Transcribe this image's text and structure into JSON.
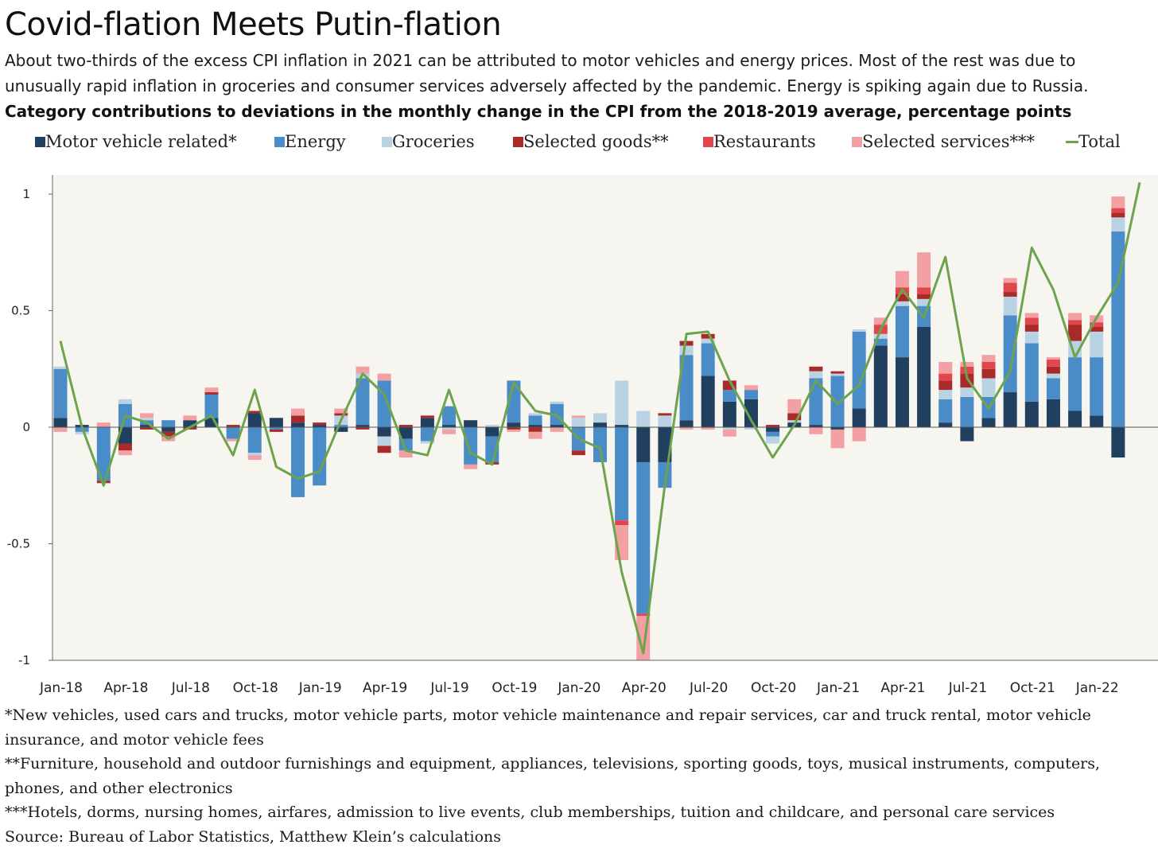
{
  "title": "Covid-flation Meets Putin-flation",
  "subtitle": "About two-thirds of the excess CPI inflation in 2021 can be attributed to motor vehicles and energy prices. Most of the rest was due to unusually rapid inflation in groceries and consumer services adversely affected by the pandemic. Energy is spiking again due to Russia.",
  "heading": "Category contributions to deviations in the monthly change in the CPI from the 2018-2019 average, percentage points",
  "legend": [
    {
      "label": "Motor vehicle related*",
      "color": "#213f5f",
      "kind": "box"
    },
    {
      "label": "Energy",
      "color": "#4a8cc7",
      "kind": "box"
    },
    {
      "label": "Groceries",
      "color": "#b9d3e5",
      "kind": "box"
    },
    {
      "label": "Selected goods**",
      "color": "#aa2a2a",
      "kind": "box"
    },
    {
      "label": "Restaurants",
      "color": "#e0474c",
      "kind": "box"
    },
    {
      "label": "Selected services***",
      "color": "#f2a0a3",
      "kind": "box"
    },
    {
      "label": "Total",
      "color": "#6da34d",
      "kind": "line"
    }
  ],
  "footnotes": [
    "*New vehicles, used cars and trucks, motor vehicle parts, motor vehicle maintenance and repair services, car and truck rental, motor vehicle insurance, and motor vehicle fees",
    "**Furniture, household and outdoor furnishings and equipment, appliances, televisions, sporting goods, toys, musical instruments, computers, phones, and other electronics",
    "***Hotels, dorms, nursing homes, airfares, admission to live events, club memberships, tuition and childcare, and personal care services"
  ],
  "source": "Source: Bureau of Labor Statistics, Matthew Klein’s calculations",
  "chart_data": {
    "type": "bar",
    "stacked": true,
    "ylim": [
      -1,
      1.05
    ],
    "yticks": [
      {
        "value": 1,
        "label": "1"
      },
      {
        "value": 0.5,
        "label": "0.5"
      },
      {
        "value": 0,
        "label": "0"
      },
      {
        "value": -0.5,
        "label": "-0.5"
      },
      {
        "value": -1,
        "label": "-1"
      }
    ],
    "x_tick_labels": [
      {
        "index": 0,
        "label": "Jan-18"
      },
      {
        "index": 3,
        "label": "Apr-18"
      },
      {
        "index": 6,
        "label": "Jul-18"
      },
      {
        "index": 9,
        "label": "Oct-18"
      },
      {
        "index": 12,
        "label": "Jan-19"
      },
      {
        "index": 15,
        "label": "Apr-19"
      },
      {
        "index": 18,
        "label": "Jul-19"
      },
      {
        "index": 21,
        "label": "Oct-19"
      },
      {
        "index": 24,
        "label": "Jan-20"
      },
      {
        "index": 27,
        "label": "Apr-20"
      },
      {
        "index": 30,
        "label": "Jul-20"
      },
      {
        "index": 33,
        "label": "Oct-20"
      },
      {
        "index": 36,
        "label": "Jan-21"
      },
      {
        "index": 39,
        "label": "Apr-21"
      },
      {
        "index": 42,
        "label": "Jul-21"
      },
      {
        "index": 45,
        "label": "Oct-21"
      },
      {
        "index": 48,
        "label": "Jan-22"
      }
    ],
    "categories": [
      "Jan-18",
      "Feb-18",
      "Mar-18",
      "Apr-18",
      "May-18",
      "Jun-18",
      "Jul-18",
      "Aug-18",
      "Sep-18",
      "Oct-18",
      "Nov-18",
      "Dec-18",
      "Jan-19",
      "Feb-19",
      "Mar-19",
      "Apr-19",
      "May-19",
      "Jun-19",
      "Jul-19",
      "Aug-19",
      "Sep-19",
      "Oct-19",
      "Nov-19",
      "Dec-19",
      "Jan-20",
      "Feb-20",
      "Mar-20",
      "Apr-20",
      "May-20",
      "Jun-20",
      "Jul-20",
      "Aug-20",
      "Sep-20",
      "Oct-20",
      "Nov-20",
      "Dec-20",
      "Jan-21",
      "Feb-21",
      "Mar-21",
      "Apr-21",
      "May-21",
      "Jun-21",
      "Jul-21",
      "Aug-21",
      "Sep-21",
      "Oct-21",
      "Nov-21",
      "Dec-21",
      "Jan-22",
      "Feb-22",
      "Mar-22"
    ],
    "series": [
      {
        "name": "Motor vehicle related*",
        "color": "#213f5f",
        "values": [
          0.04,
          0.01,
          0.0,
          -0.07,
          0.01,
          -0.02,
          0.03,
          0.04,
          0.0,
          0.06,
          0.04,
          0.02,
          0.01,
          -0.02,
          0.01,
          -0.04,
          -0.05,
          0.04,
          0.01,
          0.03,
          -0.04,
          0.02,
          0.01,
          0.01,
          0.0,
          0.02,
          0.01,
          -0.15,
          -0.15,
          0.03,
          0.22,
          0.11,
          0.12,
          -0.02,
          0.02,
          0.01,
          -0.01,
          0.08,
          0.35,
          0.3,
          0.43,
          0.02,
          -0.06,
          0.04,
          0.15,
          0.11,
          0.12,
          0.07,
          0.05,
          -0.13,
          0.0
        ]
      },
      {
        "name": "Energy",
        "color": "#4a8cc7",
        "values": [
          0.21,
          -0.02,
          -0.23,
          0.1,
          0.02,
          0.03,
          0.0,
          0.1,
          -0.05,
          -0.11,
          -0.01,
          -0.3,
          -0.25,
          0.01,
          0.2,
          0.2,
          -0.05,
          -0.06,
          0.08,
          -0.16,
          -0.11,
          0.18,
          0.04,
          0.09,
          -0.1,
          -0.15,
          -0.4,
          -0.65,
          -0.11,
          0.28,
          0.14,
          0.05,
          0.04,
          -0.02,
          0.0,
          0.2,
          0.22,
          0.33,
          0.03,
          0.22,
          0.09,
          0.1,
          0.13,
          0.09,
          0.33,
          0.25,
          0.09,
          0.23,
          0.25,
          0.84,
          0.0
        ]
      },
      {
        "name": "Groceries",
        "color": "#b9d3e5",
        "values": [
          0.01,
          -0.01,
          0.0,
          0.02,
          0.01,
          0.0,
          0.0,
          0.0,
          0.0,
          -0.01,
          0.0,
          0.0,
          0.0,
          0.04,
          0.02,
          -0.04,
          0.0,
          -0.01,
          -0.01,
          0.0,
          0.01,
          0.0,
          0.01,
          0.01,
          0.04,
          0.04,
          0.19,
          0.07,
          0.05,
          0.04,
          0.02,
          -0.01,
          -0.01,
          -0.03,
          0.01,
          0.03,
          0.01,
          0.01,
          0.02,
          0.02,
          0.03,
          0.04,
          0.04,
          0.08,
          0.08,
          0.05,
          0.02,
          0.07,
          0.11,
          0.06,
          0.0
        ]
      },
      {
        "name": "Selected goods**",
        "color": "#aa2a2a",
        "values": [
          0.0,
          0.0,
          -0.01,
          -0.03,
          -0.01,
          -0.02,
          -0.01,
          0.01,
          0.01,
          0.01,
          -0.01,
          0.03,
          0.01,
          0.01,
          -0.01,
          -0.03,
          0.01,
          0.01,
          0.0,
          0.0,
          -0.01,
          -0.01,
          -0.02,
          0.0,
          -0.02,
          0.0,
          0.0,
          0.0,
          0.01,
          0.02,
          0.02,
          0.04,
          0.0,
          0.01,
          0.03,
          0.02,
          0.01,
          0.0,
          0.0,
          0.03,
          0.02,
          0.04,
          0.06,
          0.04,
          0.02,
          0.03,
          0.03,
          0.07,
          0.02,
          0.02,
          0.0
        ]
      },
      {
        "name": "Restaurants",
        "color": "#e0474c",
        "values": [
          0.0,
          0.0,
          0.0,
          0.0,
          0.0,
          0.0,
          0.0,
          0.0,
          0.0,
          0.0,
          0.0,
          0.0,
          0.0,
          0.0,
          0.0,
          0.0,
          0.0,
          0.0,
          0.0,
          0.0,
          0.0,
          0.0,
          0.0,
          0.0,
          0.0,
          0.0,
          -0.02,
          -0.01,
          0.0,
          0.0,
          0.0,
          0.0,
          0.0,
          0.0,
          0.0,
          0.0,
          0.0,
          0.0,
          0.04,
          0.03,
          0.03,
          0.03,
          0.03,
          0.03,
          0.04,
          0.03,
          0.03,
          0.02,
          0.02,
          0.02,
          0.0
        ]
      },
      {
        "name": "Selected services***",
        "color": "#f2a0a3",
        "values": [
          -0.02,
          0.0,
          0.02,
          -0.02,
          0.02,
          -0.02,
          0.02,
          0.02,
          -0.01,
          -0.02,
          0.0,
          0.03,
          0.0,
          0.02,
          0.03,
          0.03,
          -0.03,
          0.0,
          -0.02,
          -0.02,
          0.0,
          -0.01,
          -0.03,
          -0.02,
          0.01,
          0.0,
          -0.15,
          -0.19,
          0.0,
          -0.01,
          -0.01,
          -0.03,
          0.02,
          0.0,
          0.06,
          -0.03,
          -0.08,
          -0.06,
          0.03,
          0.07,
          0.15,
          0.05,
          0.02,
          0.03,
          0.02,
          0.02,
          0.01,
          0.03,
          0.03,
          0.05,
          0.0
        ]
      }
    ],
    "total": [
      0.37,
      0.0,
      -0.25,
      0.05,
      0.02,
      -0.05,
      0.0,
      0.05,
      -0.12,
      0.16,
      -0.17,
      -0.22,
      -0.19,
      0.03,
      0.23,
      0.14,
      -0.1,
      -0.12,
      0.16,
      -0.11,
      -0.16,
      0.19,
      0.07,
      0.05,
      -0.05,
      -0.09,
      -0.62,
      -0.97,
      -0.25,
      0.4,
      0.41,
      0.2,
      0.03,
      -0.13,
      0.01,
      0.2,
      0.1,
      0.18,
      0.42,
      0.59,
      0.47,
      0.73,
      0.21,
      0.08,
      0.24,
      0.77,
      0.59,
      0.3,
      0.47,
      0.62,
      1.05
    ]
  }
}
